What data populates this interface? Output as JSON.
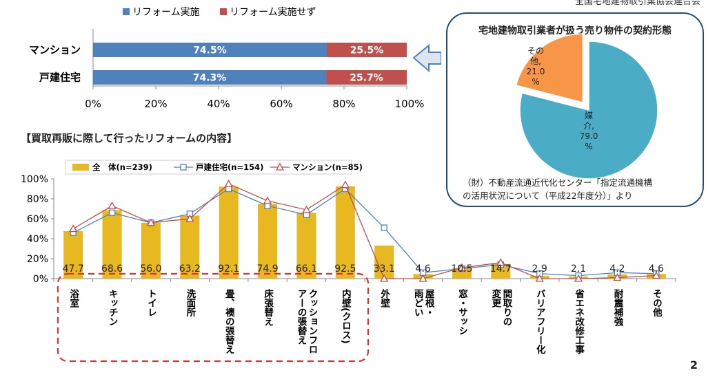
{
  "header_fragment": "全国宅地建物取引業協会連合会",
  "page_number": "2",
  "bottom_title": "【買取再販に際して行ったリフォームの内容】",
  "pie_panel": {
    "title": "宅地建物取引業者が扱う売り物件の契約形態",
    "note_line1": "（財）不動産流通近代化センター「指定流通機構",
    "note_line2": "の活用状況について（平成22年度分）」より"
  },
  "colors": {
    "blue": "#4f81bd",
    "red": "#c0504d",
    "gold": "#e8b820",
    "teal": "#4bacc6",
    "orange": "#f79646",
    "arrow": "#4f81bd",
    "dashed": "#e23030"
  },
  "chart_data": [
    {
      "type": "bar",
      "stacked": true,
      "orientation": "horizontal",
      "categories": [
        "マンション",
        "戸建住宅"
      ],
      "series": [
        {
          "name": "リフォーム実施",
          "values": [
            74.5,
            74.3
          ],
          "labels": [
            "74.5%",
            "74.3%"
          ]
        },
        {
          "name": "リフォーム実施せず",
          "values": [
            25.5,
            25.7
          ],
          "labels": [
            "25.5%",
            "25.7%"
          ]
        }
      ],
      "xlim": [
        0,
        100
      ],
      "xticks": [
        "0%",
        "20%",
        "40%",
        "60%",
        "80%",
        "100%"
      ],
      "legend": "top"
    },
    {
      "type": "pie",
      "slices": [
        {
          "label": "媒介, 79.0 %",
          "lines": [
            "媒",
            "介,",
            "79.0",
            "%"
          ],
          "value": 79.0
        },
        {
          "label": "その他, 21.0 %",
          "lines": [
            "その",
            "他,",
            "21.0",
            "%"
          ],
          "value": 21.0
        }
      ]
    },
    {
      "type": "bar",
      "categories": [
        "浴室",
        "キッチン",
        "トイレ",
        "洗面所",
        "畳、襖の張替え",
        "床張替え",
        "クッションフロアーの張替え",
        "内壁(クロス)",
        "外壁",
        "屋根・雨どい",
        "窓・サッシ",
        "間取りの変更",
        "バリアフリー化",
        "省エネ改修工事",
        "耐震補強",
        "その他"
      ],
      "category_lines": [
        [
          "浴室"
        ],
        [
          "キッチン"
        ],
        [
          "トイレ"
        ],
        [
          "洗面所"
        ],
        [
          "畳、襖の張替え"
        ],
        [
          "床張替え"
        ],
        [
          "クッションフロ",
          "アーの張替え"
        ],
        [
          "内壁(クロス)"
        ],
        [
          "外壁"
        ],
        [
          "屋根・",
          "雨どい"
        ],
        [
          "窓・サッシ"
        ],
        [
          "間取りの",
          "変更"
        ],
        [
          "バリアフリー化"
        ],
        [
          "省エネ改修工事"
        ],
        [
          "耐震補強"
        ],
        [
          "その他"
        ]
      ],
      "series": [
        {
          "name": "全　体(n=239)",
          "kind": "bar",
          "values": [
            47.7,
            68.6,
            56.0,
            63.2,
            92.1,
            74.9,
            66.1,
            92.5,
            33.1,
            4.6,
            10.5,
            14.7,
            2.9,
            2.1,
            4.2,
            4.6
          ],
          "labels": [
            "47.7",
            "68.6",
            "56.0",
            "63.2",
            "92.1",
            "74.9",
            "66.1",
            "92.5",
            "33.1",
            "4.6",
            "10.5",
            "14.7",
            "2.9",
            "2.1",
            "4.2",
            "4.6"
          ]
        },
        {
          "name": "戸建住宅(n=154)",
          "kind": "line",
          "marker": "square",
          "values": [
            46,
            66,
            56,
            65,
            90,
            73,
            64,
            90,
            51,
            6,
            10,
            14,
            5,
            3,
            6,
            5
          ]
        },
        {
          "name": "マンション(n=85)",
          "kind": "line",
          "marker": "triangle",
          "values": [
            50,
            73,
            56,
            60,
            95,
            78,
            69,
            94,
            0,
            0,
            11,
            16,
            0,
            0,
            1,
            3
          ]
        }
      ],
      "ylim": [
        0,
        100
      ],
      "yticks": [
        "0%",
        "20%",
        "40%",
        "60%",
        "80%",
        "100%"
      ],
      "legend": "top"
    }
  ]
}
